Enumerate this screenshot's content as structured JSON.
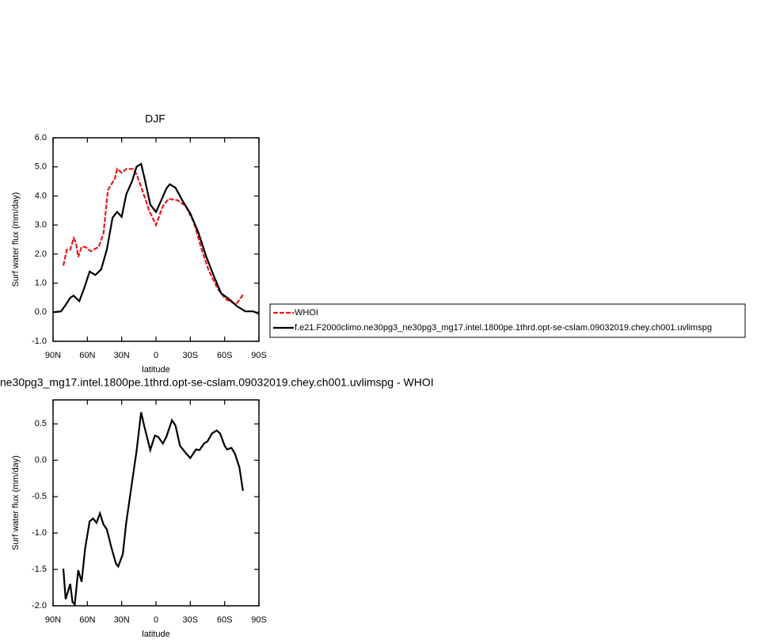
{
  "chart_data": [
    {
      "type": "line",
      "title": "DJF",
      "xlabel": "latitude",
      "ylabel": "Surf water flux (mm/day)",
      "xlim": [
        90,
        -90
      ],
      "xticks": [
        {
          "value": 90,
          "label": "90N"
        },
        {
          "value": 60,
          "label": "60N"
        },
        {
          "value": 30,
          "label": "30N"
        },
        0,
        {
          "value": -30,
          "label": "30S"
        },
        {
          "value": -60,
          "label": "60S"
        },
        {
          "value": -90,
          "label": "90S"
        }
      ],
      "ylim": [
        -1,
        6
      ],
      "yticks": [
        {
          "value": -1,
          "label": "-1.0"
        },
        {
          "value": 0,
          "label": "0.0"
        },
        {
          "value": 1,
          "label": "1.0"
        },
        {
          "value": 2,
          "label": "2.0"
        },
        {
          "value": 3,
          "label": "3.0"
        },
        {
          "value": 4,
          "label": "4.0"
        },
        {
          "value": 5,
          "label": "5.0"
        },
        {
          "value": 6,
          "label": "6.0"
        }
      ],
      "legend": "right",
      "series": [
        {
          "name": "WHOI",
          "color": "#e41a1c",
          "dashed": true,
          "x": [
            81,
            78,
            75,
            72,
            70,
            68,
            65,
            62,
            57,
            50,
            46,
            42,
            36,
            34,
            30,
            26,
            20,
            17,
            12,
            6,
            0,
            -6,
            -11,
            -19,
            -26,
            -33,
            -40,
            -46,
            -54,
            -61,
            -70,
            -76
          ],
          "values": [
            1.6,
            2.15,
            2.15,
            2.55,
            2.4,
            1.9,
            2.25,
            2.25,
            2.1,
            2.25,
            2.7,
            4.2,
            4.6,
            4.93,
            4.8,
            4.93,
            4.93,
            4.75,
            4.2,
            3.5,
            3.0,
            3.65,
            3.9,
            3.85,
            3.65,
            3.1,
            2.15,
            1.45,
            0.8,
            0.45,
            0.27,
            0.6
          ]
        },
        {
          "name": "f.e21.F2000climo.ne30pg3_ne30pg3_mg17.intel.1800pe.1thrd.opt-se-cslam.09032019.chey.ch001.uvlimspg",
          "color": "#000000",
          "dashed": false,
          "x": [
            90,
            83,
            79,
            75,
            72,
            67,
            63,
            58,
            53,
            48,
            43,
            38,
            34,
            30,
            26,
            21,
            17,
            13,
            10,
            5,
            0,
            -4,
            -9,
            -12,
            -17,
            -23,
            -30,
            -37,
            -44,
            -51,
            -57,
            -64,
            -71,
            -78,
            -85,
            -90
          ],
          "values": [
            0.0,
            0.03,
            0.25,
            0.5,
            0.57,
            0.38,
            0.8,
            1.4,
            1.28,
            1.47,
            2.15,
            3.25,
            3.45,
            3.28,
            4.05,
            4.5,
            5.0,
            5.1,
            4.6,
            3.7,
            3.45,
            3.8,
            4.25,
            4.4,
            4.28,
            3.85,
            3.4,
            2.75,
            1.9,
            1.2,
            0.65,
            0.45,
            0.2,
            0.03,
            0.03,
            -0.05
          ]
        }
      ]
    },
    {
      "type": "line",
      "title": "ne30pg3_mg17.intel.1800pe.1thrd.opt-se-cslam.09032019.chey.ch001.uvlimspg - WHOI",
      "xlabel": "latitude",
      "ylabel": "Surf water flux (mm/day)",
      "xlim": [
        90,
        -90
      ],
      "xticks": [
        {
          "value": 90,
          "label": "90N"
        },
        {
          "value": 60,
          "label": "60N"
        },
        {
          "value": 30,
          "label": "30N"
        },
        0,
        {
          "value": -30,
          "label": "30S"
        },
        {
          "value": -60,
          "label": "60S"
        },
        {
          "value": -90,
          "label": "90S"
        }
      ],
      "ylim": [
        -2,
        0.83
      ],
      "yticks": [
        {
          "value": -2,
          "label": "-2.0"
        },
        {
          "value": -1.5,
          "label": "-1.5"
        },
        {
          "value": -1,
          "label": "-1.0"
        },
        {
          "value": -0.5,
          "label": "-0.5"
        },
        {
          "value": 0,
          "label": "0.0"
        },
        0.5
      ],
      "series": [
        {
          "color": "#000000",
          "dashed": false,
          "x": [
            81,
            79,
            75,
            73,
            71,
            68,
            65,
            62,
            58,
            55,
            52,
            49,
            46,
            43,
            39,
            35,
            33,
            29,
            26,
            20,
            17,
            13,
            10,
            5,
            1,
            -2,
            -6,
            -9,
            -14,
            -17,
            -21,
            -26,
            -30,
            -35,
            -38,
            -42,
            -45,
            -49,
            -53,
            -56,
            -60,
            -62,
            -66,
            -69,
            -73,
            -76
          ],
          "values": [
            -1.49,
            -1.91,
            -1.7,
            -1.95,
            -1.98,
            -1.51,
            -1.67,
            -1.22,
            -0.84,
            -0.8,
            -0.86,
            -0.73,
            -0.88,
            -0.95,
            -1.2,
            -1.42,
            -1.46,
            -1.29,
            -0.86,
            -0.2,
            0.12,
            0.66,
            0.45,
            0.14,
            0.34,
            0.32,
            0.23,
            0.32,
            0.55,
            0.48,
            0.2,
            0.1,
            0.03,
            0.15,
            0.14,
            0.23,
            0.26,
            0.37,
            0.41,
            0.37,
            0.2,
            0.15,
            0.17,
            0.09,
            -0.1,
            -0.42
          ]
        }
      ]
    }
  ]
}
